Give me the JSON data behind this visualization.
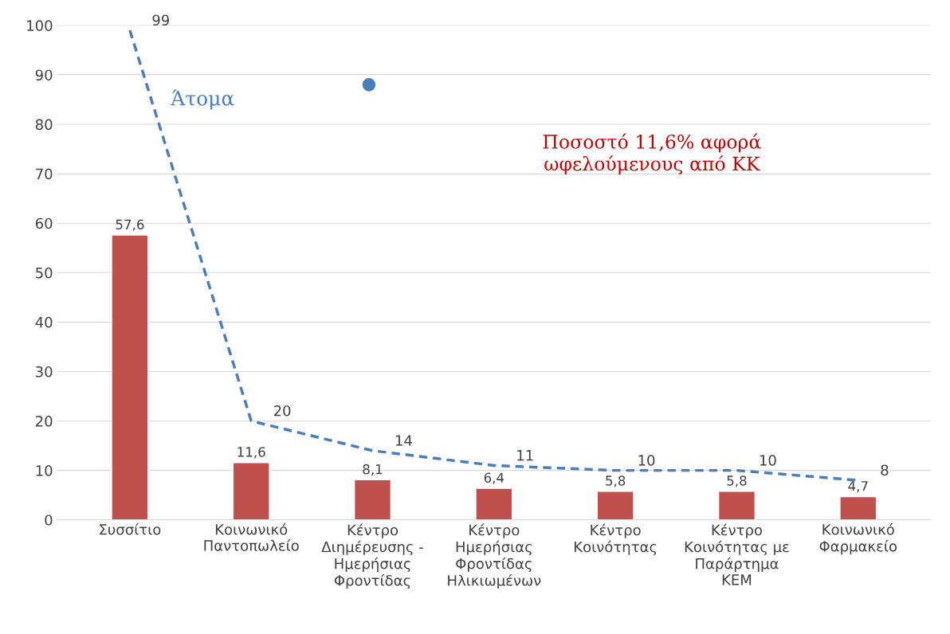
{
  "chart_data": {
    "type": "bar",
    "categories": [
      "Συσσίτιο",
      "Κοινωνικό\nΠαντοπωλείο",
      "Κέντρο\nΔιημέρευσης -\nΗμερήσιας\nΦροντίδας",
      "Κέντρο\nΗμερήσιας\nΦροντίδας\nΗλικιωμένων",
      "Κέντρο\nΚοινότητας",
      "Κέντρο\nΚοινότητας με\nΠαράρτημα\nΚΕΜ",
      "Κοινωνικό\nΦαρμακείο"
    ],
    "series": [
      {
        "color": "#c0504d",
        "values": [
          57.6,
          11.6,
          8.1,
          6.4,
          5.8,
          5.8,
          4.7
        ],
        "value_labels": [
          "57,6",
          "11,6",
          "8,1",
          "6,4",
          "5,8",
          "5,8",
          "4,7"
        ]
      },
      {
        "type": "line",
        "name": "Άτομα",
        "color": "#4a7ebb",
        "line_style": "dashed",
        "marker": "none",
        "values": [
          99,
          20,
          14,
          11,
          10,
          10,
          8
        ],
        "value_labels": [
          "99",
          "20",
          "14",
          "11",
          "10",
          "10",
          "8"
        ]
      }
    ],
    "ylim": [
      0,
      100
    ],
    "yticks": [
      0,
      10,
      20,
      30,
      40,
      50,
      60,
      70,
      80,
      90,
      100
    ],
    "grid": "y",
    "legend": false,
    "annotations": [
      "Ποσοστό 11,6% αφορά\nωφελούμενους από ΚΚ"
    ]
  }
}
